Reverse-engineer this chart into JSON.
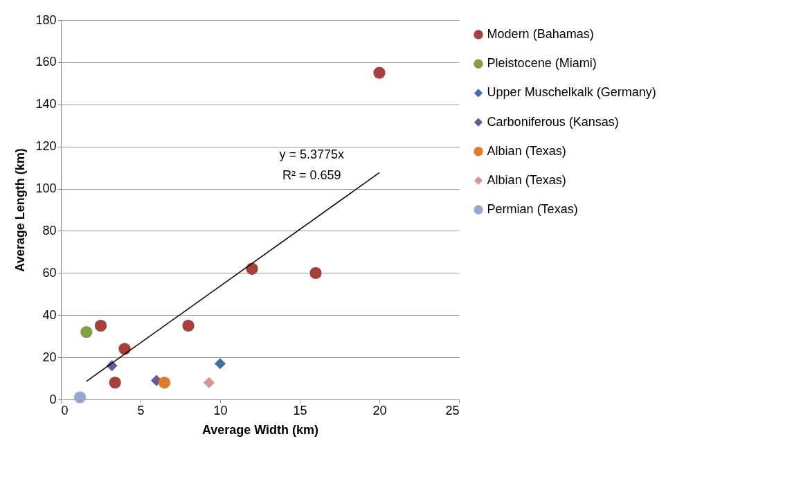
{
  "chart_data": {
    "type": "scatter",
    "xlabel": "Average Width (km)",
    "ylabel": "Average Length (km)",
    "xlim": [
      0,
      25
    ],
    "xticks": [
      0,
      5,
      10,
      15,
      20,
      25
    ],
    "ylim": [
      0,
      180
    ],
    "yticks": [
      0,
      20,
      40,
      60,
      80,
      100,
      120,
      140,
      160,
      180
    ],
    "grid": "y",
    "legend": "right",
    "series": [
      {
        "name": "Modern (Bahamas)",
        "color": "#a5403d",
        "marker": "circle",
        "x": [
          20,
          16,
          12,
          8,
          2.5,
          4,
          3.4
        ],
        "values": [
          155,
          60,
          62,
          35,
          35,
          24,
          8
        ]
      },
      {
        "name": "Pleistocene (Miami)",
        "color": "#7fa245",
        "marker": "circle",
        "x": [
          1.6
        ],
        "values": [
          32
        ]
      },
      {
        "name": "Upper Muschelkalk (Germany)",
        "color": "#3f6fa9",
        "marker": "diamond",
        "x": [
          10
        ],
        "values": [
          17
        ]
      },
      {
        "name": "Carboniferous (Kansas)",
        "color": "#6e5797",
        "marker": "diamond",
        "x": [
          3.2,
          6
        ],
        "values": [
          16,
          9
        ]
      },
      {
        "name": "Albian (Texas)",
        "color": "#e07b2a",
        "marker": "circle",
        "x": [
          6.5
        ],
        "values": [
          8
        ]
      },
      {
        "name": "Albian (Texas)",
        "color": "#d59593",
        "marker": "diamond",
        "x": [
          9.3
        ],
        "values": [
          8
        ]
      },
      {
        "name": "Permian (Texas)",
        "color": "#93a9d0",
        "marker": "circle",
        "x": [
          1.2
        ],
        "values": [
          1
        ]
      },
      {
        "type": "line",
        "color": "#000000",
        "x": [
          1.6,
          20
        ],
        "values": [
          8.6,
          107.6
        ]
      }
    ],
    "annotations": [
      "y = 5.3775x",
      "R² = 0.659"
    ]
  }
}
